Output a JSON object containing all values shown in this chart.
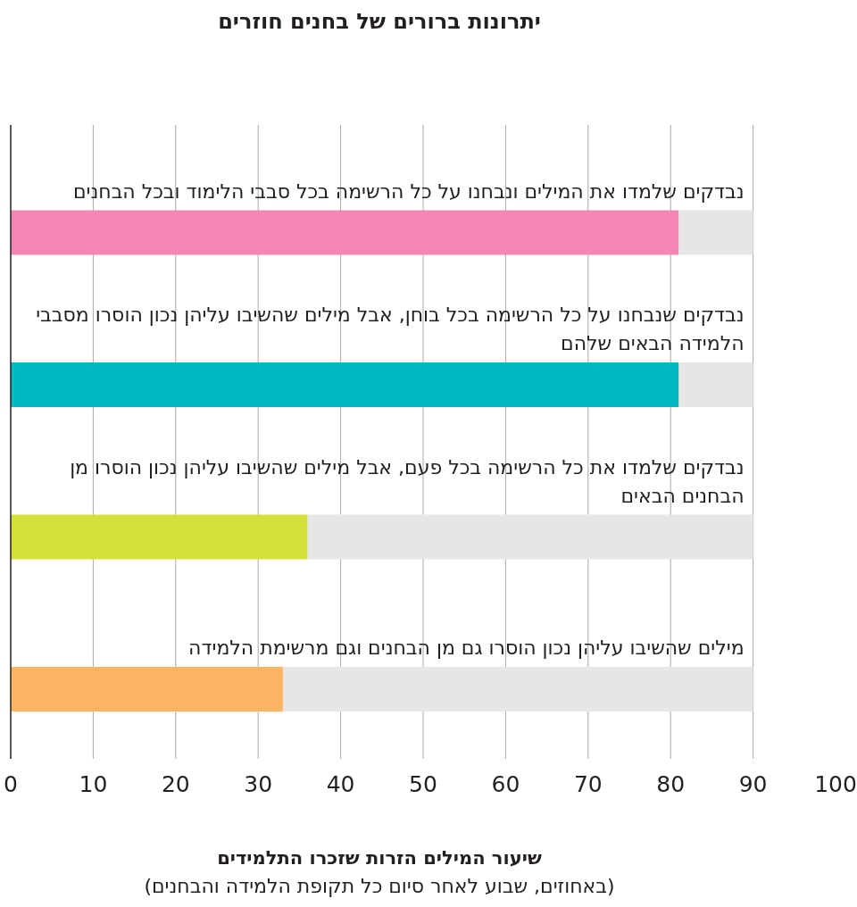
{
  "chart_data": {
    "type": "bar",
    "orientation": "horizontal",
    "stacked": true,
    "title": "יתרונות ברורים של בחנים חוזרים",
    "xlabel": "שיעור המילים הזרות שזכרו התלמידים",
    "annotations": [
      "(באחוזים, שבוע לאחר סיום כל תקופת הלמידה והבחנים)"
    ],
    "categories": [
      "נבדקים שלמדו את המילים ונבחנו על כל הרשימה בכל סבבי הלימוד ובכל הבחנים",
      "נבדקים שנבחנו על כל הרשימה בכל בוחן, אבל מילים שהשיבו עליהן נכון הוסרו מסבבי הלמידה הבאים שלהם",
      "נבדקים שלמדו את כל הרשימה בכל פעם, אבל מילים שהשיבו עליהן נכון הוסרו מן הבחנים הבאים",
      "מילים שהשיבו עליהן נכון הוסרו גם מן הבחנים וגם מרשימת הלמידה"
    ],
    "series": [
      {
        "colors": [
          "#f386b4",
          "#00b9c3",
          "#d5e03a",
          "#fbb462"
        ],
        "values": [
          81,
          81,
          36,
          33
        ]
      },
      {
        "color": "#e6e6e7",
        "values": [
          9,
          9,
          54,
          57
        ]
      }
    ],
    "xlim": [
      0,
      100
    ],
    "xticks": [
      0,
      10,
      20,
      30,
      40,
      50,
      60,
      70,
      80,
      90,
      100
    ],
    "grid": "x"
  }
}
